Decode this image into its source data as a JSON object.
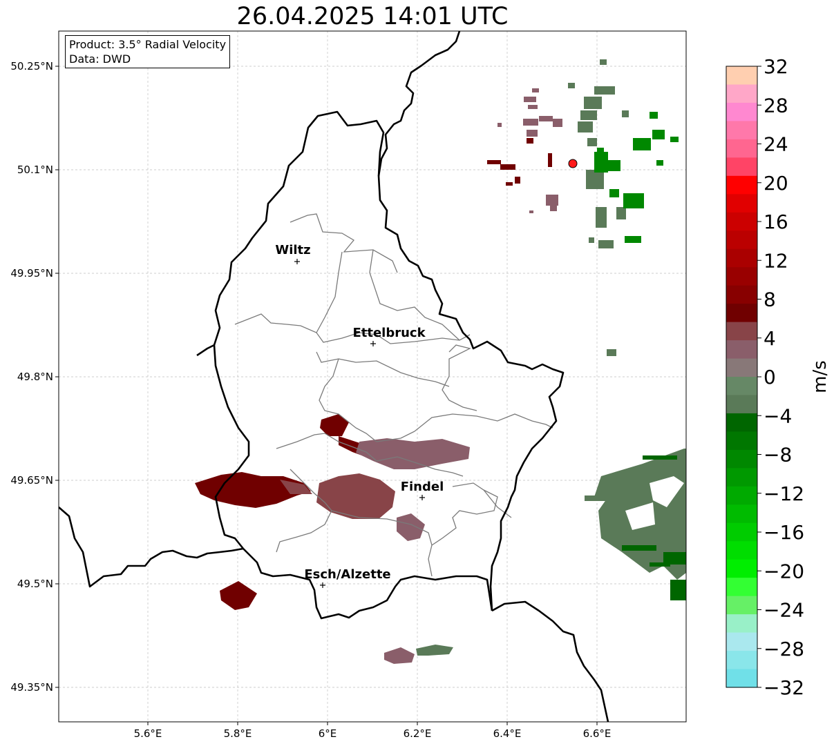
{
  "title": "26.04.2025 14:01 UTC",
  "info": {
    "product": "Product: 3.5° Radial Velocity",
    "data_source": "Data: DWD"
  },
  "map": {
    "lon_ticks": [
      "5.6°E",
      "5.8°E",
      "6°E",
      "6.2°E",
      "6.4°E",
      "6.6°E"
    ],
    "lat_ticks": [
      "50.25°N",
      "50.1°N",
      "49.95°N",
      "49.8°N",
      "49.65°N",
      "49.5°N",
      "49.35°N"
    ],
    "cities": [
      {
        "name": "Wiltz",
        "lon": 5.93,
        "lat": 49.968
      },
      {
        "name": "Ettelbruck",
        "lon": 6.1,
        "lat": 49.848
      },
      {
        "name": "Findel",
        "lon": 6.21,
        "lat": 49.626
      },
      {
        "name": "Esch/Alzette",
        "lon": 5.99,
        "lat": 49.498
      }
    ],
    "radar_site": {
      "lon": 6.55,
      "lat": 50.109
    }
  },
  "colorbar": {
    "label": "m/s",
    "ticks": [
      "32",
      "28",
      "24",
      "20",
      "16",
      "12",
      "8",
      "4",
      "0",
      "−4",
      "−8",
      "−12",
      "−16",
      "−20",
      "−24",
      "−28",
      "−32"
    ],
    "colors_top_to_bottom": [
      "#ffcfb0",
      "#ffa7c8",
      "#ff88d0",
      "#ff78aa",
      "#ff6690",
      "#ff4466",
      "#ff0000",
      "#e10000",
      "#cc0000",
      "#bb0000",
      "#aa0000",
      "#990000",
      "#880000",
      "#700000",
      "#884448",
      "#8a5e6a",
      "#887878",
      "#668866",
      "#5a7a58",
      "#006600",
      "#007700",
      "#008800",
      "#009900",
      "#00aa00",
      "#00bb00",
      "#00cc00",
      "#00dd00",
      "#00ee00",
      "#33ff33",
      "#66f066",
      "#99f0c8",
      "#aae8ee",
      "#8ae6ea",
      "#70e0e8"
    ]
  }
}
